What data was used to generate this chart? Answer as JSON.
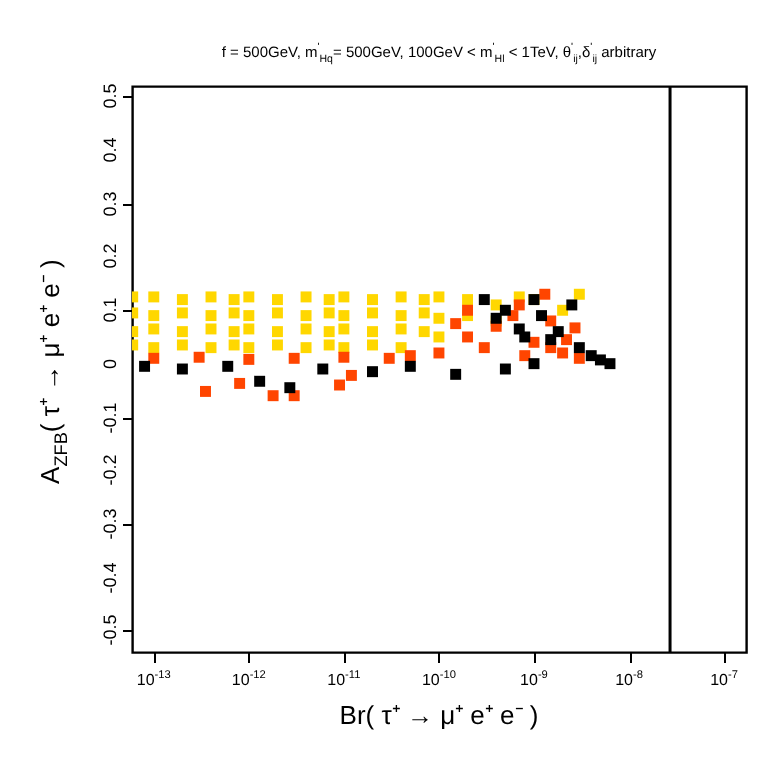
{
  "chart_data": {
    "type": "scatter",
    "title": "f = 500GeV, m$^{'}$$_{Hq}$= 500GeV, 100GeV < m$^{'}$$_{Hl}$ < 1TeV, θ$^{'}$$_{ij}$,δ$^{'}$$_{ij}$ arbitrary",
    "xlabel": "Br( τ⁺ → μ⁺ e⁺ e⁻ )",
    "ylabel": "A$_{ZFB}$( τ⁺ → μ⁺ e⁺ e⁻ )",
    "log": "x",
    "marker": "square",
    "grid": false,
    "xlim": [
      5.9e-14,
      1.7e-07
    ],
    "xticks": [
      {
        "value": 1e-13,
        "label": "10$^{-13}$"
      },
      {
        "value": 1e-12,
        "label": "10$^{-12}$"
      },
      {
        "value": 1e-11,
        "label": "10$^{-11}$"
      },
      {
        "value": 1e-10,
        "label": "10$^{-10}$"
      },
      {
        "value": 1e-09,
        "label": "10$^{-9}$"
      },
      {
        "value": 1e-08,
        "label": "10$^{-8}$"
      },
      {
        "value": 1e-07,
        "label": "10$^{-7}$"
      }
    ],
    "ylim": [
      -0.54,
      0.52
    ],
    "yticks": [
      -0.5,
      -0.4,
      -0.3,
      -0.2,
      -0.1,
      0,
      0.1,
      0.2,
      0.3,
      0.4,
      0.5
    ],
    "ref_lines": [
      {
        "axis": "x",
        "value": 2.7e-08,
        "color": "#000000"
      }
    ],
    "series": [
      {
        "color": "#ffd700",
        "x": [
          6e-14,
          1e-13,
          2e-13,
          4e-13,
          7e-13,
          1e-12,
          2e-12,
          4e-12,
          7e-12,
          1e-11,
          2e-11,
          4e-11,
          7e-11,
          1e-10,
          2e-10,
          4e-10,
          7e-10,
          1e-09,
          2e-09,
          3e-09,
          6e-14,
          1e-13,
          2e-13,
          4e-13,
          7e-13,
          1e-12,
          2e-12,
          4e-12,
          7e-12,
          1e-11,
          2e-11,
          4e-11,
          7e-11,
          1e-10,
          2e-10,
          4e-10,
          6e-14,
          1e-13,
          2e-13,
          4e-13,
          7e-13,
          1e-12,
          2e-12,
          4e-12,
          7e-12,
          1e-11,
          2e-11,
          4e-11,
          7e-11,
          1e-10,
          6e-14,
          1e-13,
          2e-13,
          4e-13,
          7e-13,
          1e-12,
          2e-12,
          4e-12,
          7e-12,
          1e-11,
          2e-11,
          4e-11
        ],
        "values": [
          0.125,
          0.125,
          0.12,
          0.125,
          0.12,
          0.125,
          0.12,
          0.125,
          0.12,
          0.125,
          0.12,
          0.125,
          0.12,
          0.125,
          0.12,
          0.11,
          0.125,
          0.12,
          0.1,
          0.13,
          0.095,
          0.09,
          0.095,
          0.09,
          0.095,
          0.09,
          0.095,
          0.09,
          0.095,
          0.09,
          0.095,
          0.09,
          0.095,
          0.085,
          0.09,
          0.08,
          0.06,
          0.065,
          0.06,
          0.065,
          0.06,
          0.065,
          0.06,
          0.065,
          0.06,
          0.065,
          0.06,
          0.065,
          0.06,
          0.05,
          0.035,
          0.03,
          0.035,
          0.03,
          0.035,
          0.03,
          0.035,
          0.03,
          0.035,
          0.03,
          0.035,
          0.03
        ]
      },
      {
        "color": "#ff4500",
        "x": [
          3.5e-13,
          8e-13,
          1.8e-12,
          3e-12,
          9e-12,
          1.2e-11,
          1e-13,
          3e-13,
          1e-12,
          3e-12,
          1e-11,
          3e-11,
          1e-10,
          2e-10,
          4e-10,
          7e-10,
          1e-09,
          1.5e-09,
          2e-09,
          2.7e-09,
          2.2e-09,
          3e-10,
          6e-10,
          1.3e-09,
          5e-11,
          2e-10,
          8e-10,
          1.5e-09,
          3e-09,
          1.5e-10
        ],
        "values": [
          -0.052,
          -0.037,
          -0.06,
          -0.06,
          -0.04,
          -0.022,
          0.01,
          0.012,
          0.008,
          0.01,
          0.012,
          0.01,
          0.02,
          0.1,
          0.07,
          0.11,
          0.04,
          0.08,
          0.02,
          0.067,
          0.045,
          0.03,
          0.09,
          0.13,
          0.015,
          0.05,
          0.015,
          0.03,
          0.01,
          0.075
        ]
      },
      {
        "color": "#000000",
        "x": [
          8e-14,
          2e-13,
          6e-13,
          1.3e-12,
          2.7e-12,
          6e-12,
          2e-11,
          5e-11,
          1.5e-10,
          5e-10,
          1e-09,
          6.3e-09,
          5e-09,
          3e-10,
          5e-10,
          8e-10,
          1.2e-09,
          1.8e-09,
          2.5e-09,
          3e-09,
          7e-10,
          1e-09,
          4e-09,
          1.5e-09,
          4e-10
        ],
        "values": [
          -0.005,
          -0.01,
          -0.005,
          -0.033,
          -0.045,
          -0.01,
          -0.015,
          -0.005,
          -0.02,
          -0.01,
          0.0,
          0.0,
          0.007,
          0.12,
          0.1,
          0.05,
          0.09,
          0.06,
          0.11,
          0.03,
          0.065,
          0.12,
          0.015,
          0.045,
          0.085
        ]
      }
    ]
  }
}
